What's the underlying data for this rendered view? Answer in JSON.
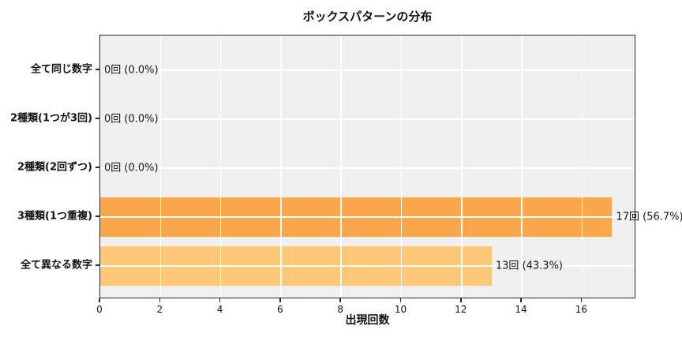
{
  "chart_data": {
    "type": "bar",
    "orientation": "horizontal",
    "title": "ボックスパターンの分布",
    "xlabel": "出現回数",
    "ylabel": "",
    "categories": [
      "全て同じ数字",
      "2種類(1つが3回)",
      "2種類(2回ずつ)",
      "3種類(1つ重複)",
      "全て異なる数字"
    ],
    "values": [
      0,
      0,
      0,
      17,
      13
    ],
    "percentages": [
      0.0,
      0.0,
      0.0,
      56.7,
      43.3
    ],
    "bar_labels": [
      "0回 (0.0%)",
      "0回 (0.0%)",
      "0回 (0.0%)",
      "17回 (56.7%)",
      "13回 (43.3%)"
    ],
    "x_ticks": [
      0,
      2,
      4,
      6,
      8,
      10,
      12,
      14,
      16
    ],
    "xlim": [
      0,
      17.8
    ],
    "grid": true,
    "gridline_color": "#ffffff",
    "plot_background": "#efefef",
    "spine_color": "#2a2a2a",
    "bar_colors": [
      null,
      null,
      null,
      "#faa64b",
      "#fcc878"
    ]
  }
}
